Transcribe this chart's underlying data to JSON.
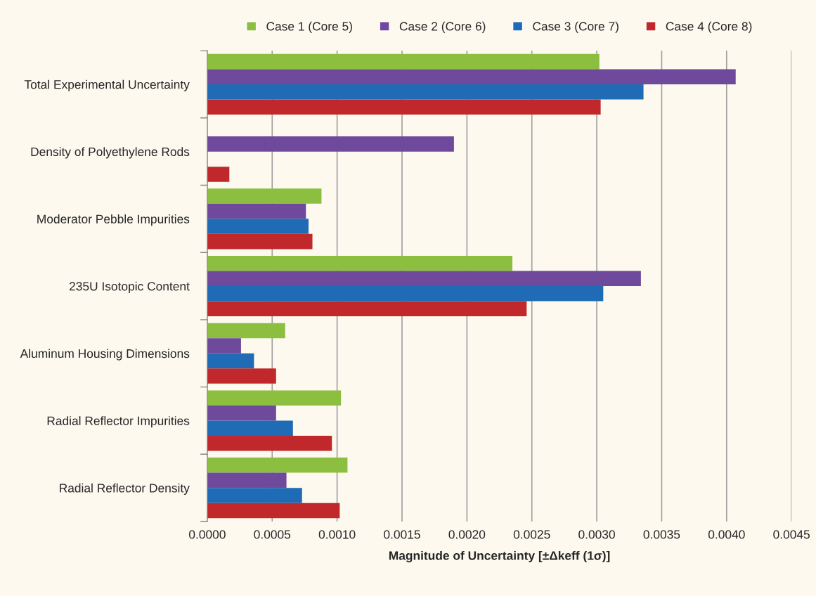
{
  "chart_data": {
    "type": "bar",
    "orientation": "horizontal",
    "xlabel": "Magnitude of Uncertainty [±Δkeff (1σ)]",
    "categories": [
      "Total Experimental Uncertainty",
      "Density of Polyethylene Rods",
      "Moderator Pebble Impurities",
      "235U Isotopic Content",
      "Aluminum Housing Dimensions",
      "Radial Reflector Impurities",
      "Radial Reflector Density"
    ],
    "series": [
      {
        "name": "Case 1 (Core 5)",
        "color": "#8cbf3f",
        "values": [
          0.00302,
          null,
          0.00088,
          0.00235,
          0.0006,
          0.00103,
          0.00108
        ]
      },
      {
        "name": "Case 2 (Core 6)",
        "color": "#6f4a9c",
        "values": [
          0.00407,
          0.0019,
          0.00076,
          0.00334,
          0.00026,
          0.00053,
          0.00061
        ]
      },
      {
        "name": "Case 3 (Core 7)",
        "color": "#1f6bb5",
        "values": [
          0.00336,
          null,
          0.00078,
          0.00305,
          0.00036,
          0.00066,
          0.00073
        ]
      },
      {
        "name": "Case 4 (Core 8)",
        "color": "#c0282c",
        "values": [
          0.00303,
          0.00017,
          0.00081,
          0.00246,
          0.00053,
          0.00096,
          0.00102
        ]
      }
    ],
    "xlim": [
      0,
      0.0045
    ],
    "xticks": [
      {
        "value": 0,
        "label": "0.0000"
      },
      {
        "value": 0.0005,
        "label": "0.0005"
      },
      {
        "value": 0.001,
        "label": "0.0010"
      },
      {
        "value": 0.0015,
        "label": "0.0015"
      },
      {
        "value": 0.002,
        "label": "0.0020"
      },
      {
        "value": 0.0025,
        "label": "0.0025"
      },
      {
        "value": 0.003,
        "label": "0.0030"
      },
      {
        "value": 0.0035,
        "label": "0.0035"
      },
      {
        "value": 0.004,
        "label": "0.0040"
      },
      {
        "value": 0.0045,
        "label": "0.0045"
      }
    ],
    "grid": "x",
    "legend": "top"
  }
}
